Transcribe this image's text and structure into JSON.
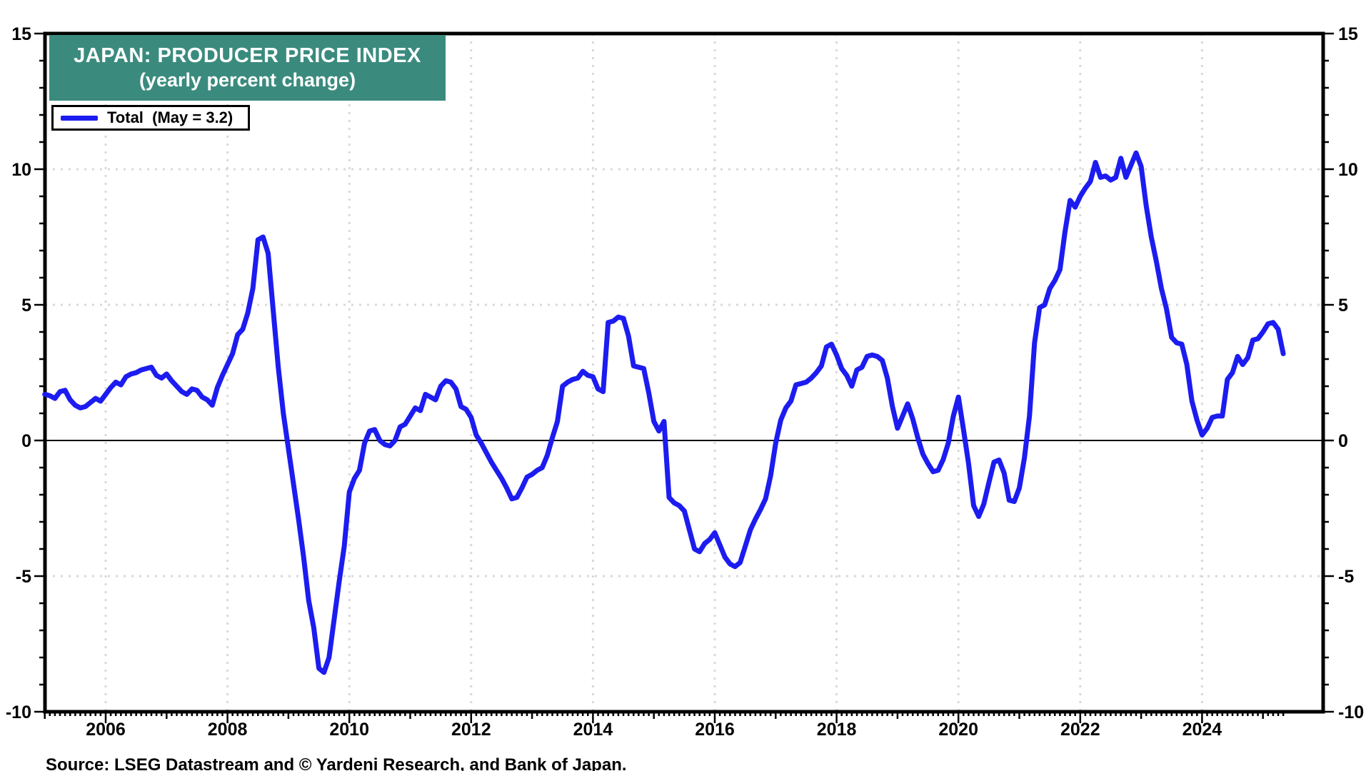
{
  "chart": {
    "title": "JAPAN: PRODUCER PRICE INDEX",
    "subtitle": "(yearly percent change)",
    "legend_label": "Total  (May = 3.2)",
    "source": "Source: LSEG Datastream and © Yardeni Research, and Bank of Japan.",
    "colors": {
      "line": "#1c1cf0",
      "title_box": "#3a8b7e",
      "title_text": "#ffffff",
      "grid": "#d9d9d9",
      "axis": "#000000",
      "background": "#ffffff"
    }
  },
  "chart_data": {
    "type": "line",
    "title": "JAPAN: PRODUCER PRICE INDEX (yearly percent change)",
    "series_name": "Total",
    "latest_point_label": "May = 3.2",
    "x_start": "2005-01",
    "x_end": "2025-05",
    "frequency": "monthly",
    "ylim": [
      -10,
      15
    ],
    "yticks": [
      15,
      10,
      5,
      0,
      -5,
      -10
    ],
    "gridline_values": [
      10,
      5,
      -5
    ],
    "xtick_years": [
      2006,
      2008,
      2010,
      2012,
      2014,
      2016,
      2018,
      2020,
      2022,
      2024
    ],
    "legend_position": "top-left",
    "grid": "dotted",
    "values": [
      1.7,
      1.65,
      1.55,
      1.8,
      1.85,
      1.5,
      1.3,
      1.2,
      1.25,
      1.4,
      1.55,
      1.45,
      1.7,
      1.95,
      2.15,
      2.05,
      2.35,
      2.45,
      2.5,
      2.6,
      2.65,
      2.7,
      2.4,
      2.3,
      2.45,
      2.2,
      2.0,
      1.8,
      1.7,
      1.9,
      1.85,
      1.6,
      1.5,
      1.3,
      1.95,
      2.4,
      2.8,
      3.2,
      3.9,
      4.1,
      4.7,
      5.6,
      7.4,
      7.5,
      6.9,
      4.8,
      2.7,
      1.0,
      -0.3,
      -1.6,
      -2.9,
      -4.3,
      -5.9,
      -6.9,
      -8.4,
      -8.55,
      -8.0,
      -6.6,
      -5.2,
      -3.9,
      -1.9,
      -1.4,
      -1.1,
      -0.1,
      0.35,
      0.4,
      0.0,
      -0.15,
      -0.2,
      0.0,
      0.5,
      0.6,
      0.9,
      1.2,
      1.1,
      1.7,
      1.6,
      1.5,
      2.0,
      2.2,
      2.15,
      1.9,
      1.25,
      1.15,
      0.85,
      0.2,
      -0.1,
      -0.45,
      -0.8,
      -1.1,
      -1.4,
      -1.75,
      -2.15,
      -2.1,
      -1.75,
      -1.35,
      -1.25,
      -1.1,
      -1.0,
      -0.55,
      0.1,
      0.7,
      2.0,
      2.15,
      2.25,
      2.3,
      2.55,
      2.4,
      2.35,
      1.9,
      1.8,
      4.35,
      4.4,
      4.55,
      4.5,
      3.85,
      2.75,
      2.7,
      2.65,
      1.75,
      0.7,
      0.35,
      0.7,
      -2.1,
      -2.3,
      -2.4,
      -2.6,
      -3.3,
      -4.0,
      -4.1,
      -3.8,
      -3.65,
      -3.4,
      -3.85,
      -4.3,
      -4.55,
      -4.65,
      -4.5,
      -3.9,
      -3.3,
      -2.9,
      -2.55,
      -2.15,
      -1.3,
      -0.1,
      0.75,
      1.2,
      1.45,
      2.05,
      2.1,
      2.15,
      2.3,
      2.5,
      2.75,
      3.45,
      3.55,
      3.15,
      2.65,
      2.4,
      2.0,
      2.6,
      2.7,
      3.1,
      3.15,
      3.1,
      2.95,
      2.3,
      1.25,
      0.45,
      0.9,
      1.35,
      0.8,
      0.1,
      -0.5,
      -0.85,
      -1.15,
      -1.1,
      -0.7,
      -0.1,
      0.9,
      1.6,
      0.4,
      -0.85,
      -2.4,
      -2.8,
      -2.35,
      -1.55,
      -0.8,
      -0.72,
      -1.2,
      -2.2,
      -2.25,
      -1.75,
      -0.65,
      0.9,
      3.6,
      4.9,
      5.0,
      5.6,
      5.9,
      6.3,
      7.7,
      8.85,
      8.6,
      9.0,
      9.3,
      9.55,
      10.25,
      9.7,
      9.75,
      9.6,
      9.7,
      10.4,
      9.7,
      10.15,
      10.6,
      10.1,
      8.65,
      7.5,
      6.6,
      5.6,
      4.85,
      3.8,
      3.6,
      3.55,
      2.8,
      1.45,
      0.75,
      0.2,
      0.45,
      0.85,
      0.9,
      0.9,
      2.25,
      2.5,
      3.1,
      2.8,
      3.05,
      3.7,
      3.75,
      4.0,
      4.3,
      4.35,
      4.1,
      3.2
    ]
  }
}
